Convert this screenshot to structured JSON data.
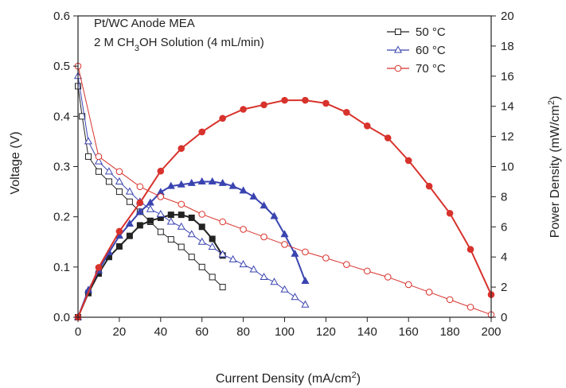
{
  "chart_data": {
    "type": "line",
    "annotation": {
      "line1": "Pt/WC Anode MEA",
      "line2_pre": "2 M CH",
      "line2_sub": "3",
      "line2_post": "OH Solution (4 mL/min)"
    },
    "x_axis": {
      "label_pre": "Current Density (mA/cm",
      "label_sup": "2",
      "label_post": ")",
      "range": [
        0,
        200
      ],
      "ticks": [
        0,
        20,
        40,
        60,
        80,
        100,
        120,
        140,
        160,
        180,
        200
      ]
    },
    "y_axis_left": {
      "label": "Voltage (V)",
      "range": [
        0,
        0.6
      ],
      "ticks": [
        "0.0",
        "0.1",
        "0.2",
        "0.3",
        "0.4",
        "0.5",
        "0.6"
      ]
    },
    "y_axis_right": {
      "label_pre": "Power Density (mW/cm",
      "label_sup": "2",
      "label_post": ")",
      "range": [
        0,
        20
      ],
      "ticks": [
        0,
        2,
        4,
        6,
        8,
        10,
        12,
        14,
        16,
        18,
        20
      ]
    },
    "grid": false,
    "legend_position": "top-right",
    "series": [
      {
        "name": "50 °C",
        "color": "#222222",
        "marker": "square",
        "voltage": {
          "x": [
            0,
            2,
            5,
            10,
            15,
            20,
            25,
            30,
            35,
            40,
            45,
            50,
            55,
            60,
            65,
            70
          ],
          "y": [
            0.46,
            0.4,
            0.32,
            0.29,
            0.27,
            0.25,
            0.23,
            0.21,
            0.19,
            0.17,
            0.155,
            0.14,
            0.12,
            0.1,
            0.08,
            0.06
          ]
        },
        "power": {
          "x": [
            0,
            5,
            10,
            15,
            20,
            25,
            30,
            35,
            40,
            45,
            50,
            55,
            60,
            65,
            70
          ],
          "y": [
            0,
            1.6,
            2.9,
            4.0,
            4.7,
            5.4,
            6.1,
            6.4,
            6.6,
            6.8,
            6.8,
            6.6,
            6.0,
            5.2,
            4.1
          ]
        }
      },
      {
        "name": "60 °C",
        "color": "#3a44b0",
        "marker": "triangle",
        "voltage": {
          "x": [
            0,
            5,
            10,
            15,
            20,
            25,
            30,
            35,
            40,
            45,
            50,
            55,
            60,
            65,
            70,
            75,
            80,
            85,
            90,
            95,
            100,
            105,
            110
          ],
          "y": [
            0.48,
            0.35,
            0.31,
            0.29,
            0.27,
            0.25,
            0.23,
            0.215,
            0.205,
            0.19,
            0.18,
            0.165,
            0.15,
            0.14,
            0.125,
            0.115,
            0.105,
            0.095,
            0.08,
            0.07,
            0.055,
            0.04,
            0.025
          ]
        },
        "power": {
          "x": [
            0,
            5,
            10,
            15,
            20,
            25,
            30,
            35,
            40,
            45,
            50,
            55,
            60,
            65,
            70,
            75,
            80,
            85,
            90,
            95,
            100,
            105,
            110
          ],
          "y": [
            0,
            1.8,
            3.1,
            4.3,
            5.4,
            6.2,
            7.0,
            7.6,
            8.3,
            8.7,
            8.8,
            8.9,
            9.0,
            9.0,
            8.9,
            8.7,
            8.4,
            8.0,
            7.4,
            6.7,
            5.5,
            4.2,
            2.4
          ]
        }
      },
      {
        "name": "70 °C",
        "color": "#d8322c",
        "marker": "circle",
        "voltage": {
          "x": [
            0,
            10,
            20,
            30,
            40,
            50,
            60,
            70,
            80,
            90,
            100,
            110,
            120,
            130,
            140,
            150,
            160,
            170,
            180,
            190,
            200
          ],
          "y": [
            0.5,
            0.32,
            0.29,
            0.26,
            0.24,
            0.225,
            0.205,
            0.19,
            0.175,
            0.16,
            0.145,
            0.13,
            0.118,
            0.105,
            0.092,
            0.08,
            0.065,
            0.05,
            0.035,
            0.02,
            0.005
          ]
        },
        "power": {
          "x": [
            0,
            10,
            20,
            30,
            40,
            50,
            60,
            70,
            80,
            90,
            100,
            110,
            120,
            130,
            140,
            150,
            160,
            170,
            180,
            190,
            200
          ],
          "y": [
            0,
            3.3,
            5.7,
            7.6,
            9.7,
            11.2,
            12.3,
            13.2,
            13.8,
            14.1,
            14.4,
            14.4,
            14.2,
            13.6,
            12.7,
            11.9,
            10.4,
            8.7,
            6.9,
            4.5,
            1.5
          ]
        }
      }
    ]
  }
}
